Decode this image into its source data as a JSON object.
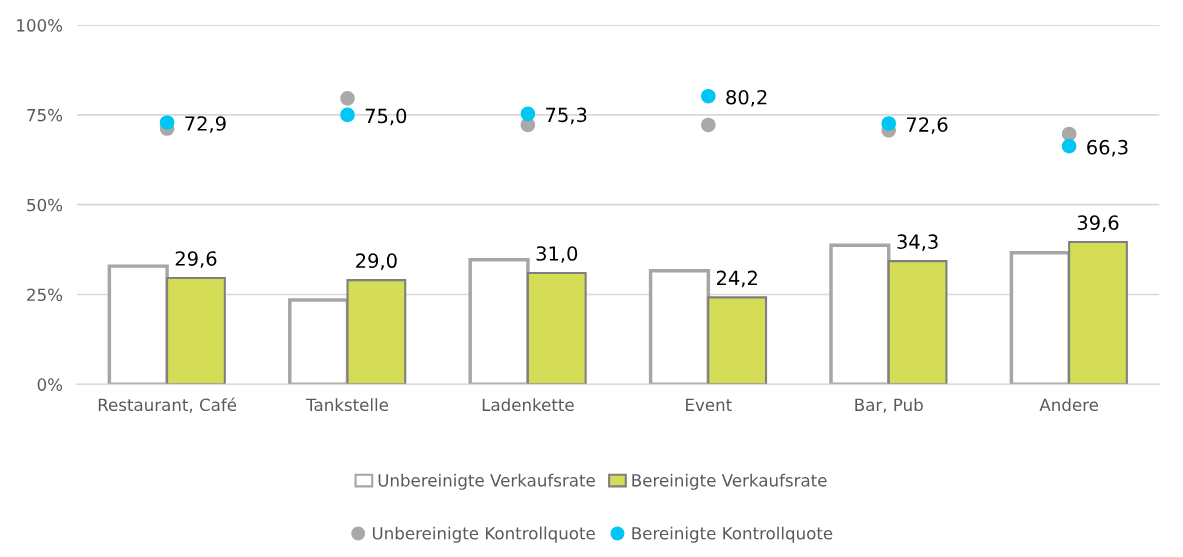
{
  "chart_data": {
    "type": "bar",
    "categories": [
      "Restaurant, Café",
      "Tankstelle",
      "Ladenkette",
      "Event",
      "Bar, Pub",
      "Andere"
    ],
    "series": [
      {
        "name": "Unbereinigte Verkaufsrate",
        "color": "#ffffff",
        "values": [
          32.9,
          23.5,
          34.7,
          31.6,
          38.7,
          36.6
        ]
      },
      {
        "name": "Bereinigte Verkaufsrate",
        "color": "#d4dd55",
        "values": [
          29.6,
          29.0,
          31.0,
          24.2,
          34.3,
          39.6
        ],
        "value_labels": [
          "29,6",
          "29,0",
          "31,0",
          "24,2",
          "34,3",
          "39,6"
        ]
      },
      {
        "name": "Unbereinigte Kontrollquote",
        "type": "scatter",
        "color": "#aba8a8",
        "x": [
          "Restaurant, Café",
          "Tankstelle",
          "Ladenkette",
          "Event",
          "Bar, Pub",
          "Andere"
        ],
        "values": [
          71.2,
          79.6,
          72.2,
          72.2,
          70.7,
          69.7
        ]
      },
      {
        "name": "Bereinigte Kontrollquote",
        "type": "scatter",
        "color": "#00c5f5",
        "x": [
          "Restaurant, Café",
          "Tankstelle",
          "Ladenkette",
          "Event",
          "Bar, Pub",
          "Andere"
        ],
        "values": [
          72.9,
          75.0,
          75.3,
          80.2,
          72.6,
          66.3
        ],
        "value_labels": [
          "72,9",
          "75,0",
          "75,3",
          "80,2",
          "72,6",
          "66,3"
        ]
      }
    ],
    "ylim": [
      0,
      100
    ],
    "yticks": [
      {
        "value": 0,
        "label": "0%"
      },
      {
        "value": 25,
        "label": "25%"
      },
      {
        "value": 50,
        "label": "50%"
      },
      {
        "value": 75,
        "label": "75%"
      },
      {
        "value": 100,
        "label": "100%"
      }
    ],
    "grid": "y",
    "legend": "bottom",
    "marker": "circle"
  }
}
